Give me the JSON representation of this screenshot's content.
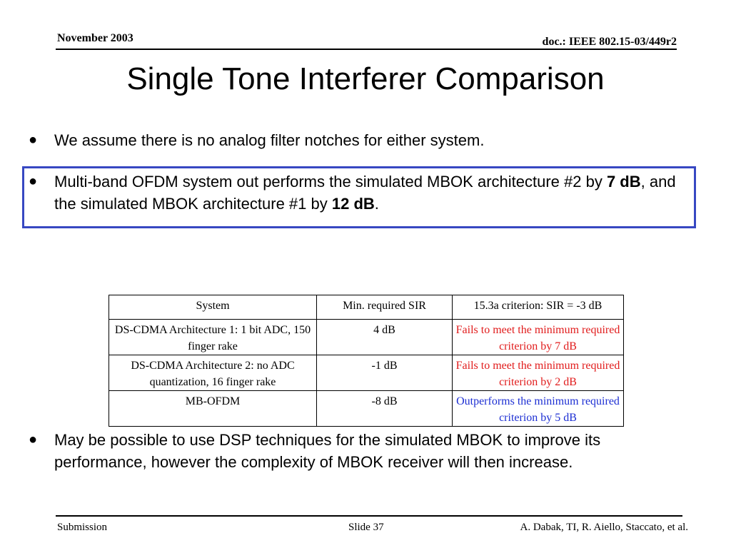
{
  "header": {
    "date": "November 2003",
    "doc": "doc.: IEEE 802.15-03/449r2"
  },
  "title": "Single Tone Interferer Comparison",
  "bullets": {
    "b1": "We assume there is no analog filter notches for either system.",
    "b2": {
      "part1": "Multi-band OFDM system out performs the simulated MBOK architecture #2 by ",
      "bold1": "7 dB",
      "part2": ", and the simulated MBOK architecture #1 by ",
      "bold2": "12 dB",
      "part3": "."
    },
    "b3": "May be possible to use DSP techniques for the simulated MBOK to improve its performance, however the complexity of MBOK receiver will then increase."
  },
  "table": {
    "headers": [
      "System",
      "Min. required SIR",
      "15.3a criterion: SIR = -3 dB"
    ],
    "rows": [
      {
        "system": "DS-CDMA Architecture 1: 1 bit ADC, 150 finger rake",
        "sir": "4 dB",
        "criterion": "Fails to meet the minimum required criterion by 7 dB",
        "status": "fail"
      },
      {
        "system": "DS-CDMA Architecture 2: no ADC quantization, 16 finger rake",
        "sir": "-1 dB",
        "criterion": "Fails to meet the minimum required criterion by 2 dB",
        "status": "fail"
      },
      {
        "system": "MB-OFDM",
        "sir": "-8 dB",
        "criterion": "Outperforms the minimum required criterion by 5 dB",
        "status": "pass"
      }
    ]
  },
  "footer": {
    "left": "Submission",
    "slide": "Slide 37",
    "authors": "A. Dabak, TI, R. Aiello, Staccato, et al."
  },
  "colors": {
    "highlight_border": "#3748c2",
    "fail_text": "#e11c1c",
    "pass_text": "#1d2fd3"
  }
}
